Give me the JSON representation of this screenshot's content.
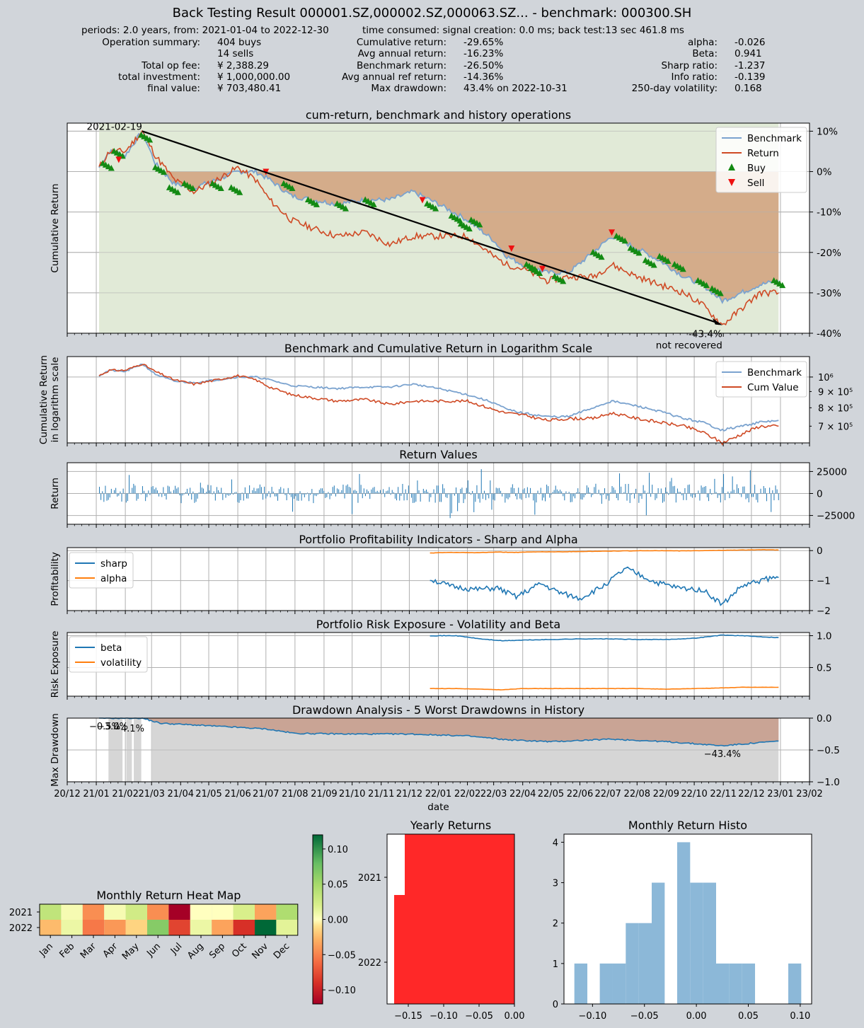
{
  "header": {
    "title": "Back Testing Result 000001.SZ,000002.SZ,000063.SZ... - benchmark: 000300.SH",
    "periods": "periods: 2.0 years, from: 2021-01-04 to 2022-12-30",
    "time_consumed": "time consumed:   signal creation: 0.0 ms;  back test:13 sec 461.8 ms",
    "left_labels": [
      "Operation summary:",
      "",
      "Total op fee:",
      "total investment:",
      "final value:"
    ],
    "left_values": [
      "404     buys",
      "14     sells",
      "¥     2,388.29",
      "¥ 1,000,000.00",
      "¥   703,480.41"
    ],
    "mid_labels": [
      "Cumulative return:",
      "Avg annual return:",
      "Benchmark return:",
      "Avg annual ref return:",
      "Max drawdown:"
    ],
    "mid_values": [
      "-29.65%",
      "-16.23%",
      "-26.50%",
      "-14.36%",
      "43.4% on 2022-10-31"
    ],
    "right_labels": [
      "alpha:",
      "Beta:",
      "Sharp ratio:",
      "Info ratio:",
      "250-day volatility:"
    ],
    "right_values": [
      "-0.026",
      "0.941",
      "-1.237",
      "-0.139",
      "0.168"
    ]
  },
  "colors": {
    "background": "#d1d5da",
    "benchmark": "#7ba3cf",
    "return": "#cf4a25",
    "buy": "#138a13",
    "sell": "#ee1111",
    "gain_fill": "#e1ead7",
    "loss_fill": "#d4ac8a",
    "bar": "#1f77b4",
    "sharp": "#1f77b4",
    "alpha": "#ff7f0e",
    "yearly": "#ff2828",
    "histo": "#8cb8d8"
  },
  "date_ticks": [
    "20/12",
    "21/01",
    "21/02",
    "21/03",
    "21/04",
    "21/05",
    "21/06",
    "21/07",
    "21/08",
    "21/09",
    "21/10",
    "21/11",
    "21/12",
    "22/01",
    "22/02",
    "22/03",
    "22/04",
    "22/05",
    "22/06",
    "22/07",
    "22/08",
    "22/09",
    "22/10",
    "22/11",
    "22/12",
    "23/01",
    "23/02"
  ],
  "x_label": "date",
  "chart_data": [
    {
      "id": "cum",
      "type": "line",
      "title": "cum-return, benchmark and history operations",
      "ylabel": "Cumulative Return",
      "ylim": [
        -0.4,
        0.12
      ],
      "yticks": [
        0.1,
        0,
        -0.1,
        -0.2,
        -0.3,
        -0.4
      ],
      "ytick_labels": [
        "10%",
        "0%",
        "-10%",
        "-20%",
        "-30%",
        "-40%"
      ],
      "legend": [
        "Benchmark",
        "Return",
        "Buy",
        "Sell"
      ],
      "legend_position": "top-right",
      "grid": true,
      "x": [
        "2021-01-04",
        "2021-01-15",
        "2021-02-01",
        "2021-02-19",
        "2021-03-05",
        "2021-03-25",
        "2021-04-15",
        "2021-05-10",
        "2021-06-01",
        "2021-06-20",
        "2021-07-05",
        "2021-07-28",
        "2021-08-20",
        "2021-09-15",
        "2021-10-15",
        "2021-11-10",
        "2021-12-05",
        "2022-01-01",
        "2022-02-01",
        "2022-03-01",
        "2022-03-15",
        "2022-04-01",
        "2022-04-27",
        "2022-05-20",
        "2022-06-15",
        "2022-07-05",
        "2022-08-01",
        "2022-08-25",
        "2022-09-20",
        "2022-10-10",
        "2022-10-31",
        "2022-11-20",
        "2022-12-10",
        "2022-12-30"
      ],
      "series": [
        {
          "name": "Benchmark",
          "values": [
            0.01,
            0.05,
            0.04,
            0.1,
            0.02,
            -0.03,
            -0.04,
            -0.02,
            0.0,
            0.0,
            -0.02,
            -0.06,
            -0.07,
            -0.08,
            -0.07,
            -0.07,
            -0.05,
            -0.08,
            -0.12,
            -0.17,
            -0.21,
            -0.23,
            -0.25,
            -0.25,
            -0.2,
            -0.16,
            -0.19,
            -0.22,
            -0.26,
            -0.28,
            -0.32,
            -0.3,
            -0.28,
            -0.27
          ]
        },
        {
          "name": "Return",
          "values": [
            0.01,
            0.05,
            0.05,
            0.1,
            0.04,
            -0.02,
            -0.05,
            -0.02,
            0.01,
            -0.02,
            -0.07,
            -0.12,
            -0.14,
            -0.16,
            -0.15,
            -0.18,
            -0.16,
            -0.16,
            -0.16,
            -0.21,
            -0.23,
            -0.24,
            -0.27,
            -0.26,
            -0.26,
            -0.23,
            -0.26,
            -0.28,
            -0.3,
            -0.33,
            -0.38,
            -0.34,
            -0.3,
            -0.3
          ]
        }
      ],
      "buy_markers": [
        [
          "2021-01-08",
          0.02
        ],
        [
          "2021-01-20",
          0.05
        ],
        [
          "2021-02-18",
          0.09
        ],
        [
          "2021-03-05",
          0.01
        ],
        [
          "2021-03-20",
          -0.04
        ],
        [
          "2021-04-05",
          -0.03
        ],
        [
          "2021-05-05",
          -0.03
        ],
        [
          "2021-05-25",
          -0.04
        ],
        [
          "2021-07-20",
          -0.03
        ],
        [
          "2021-08-15",
          -0.07
        ],
        [
          "2021-09-15",
          -0.08
        ],
        [
          "2021-10-15",
          -0.07
        ],
        [
          "2021-12-20",
          -0.08
        ],
        [
          "2022-01-15",
          -0.11
        ],
        [
          "2022-01-25",
          -0.13
        ],
        [
          "2022-02-05",
          -0.12
        ],
        [
          "2022-04-05",
          -0.23
        ],
        [
          "2022-04-10",
          -0.24
        ],
        [
          "2022-05-05",
          -0.26
        ],
        [
          "2022-06-15",
          -0.2
        ],
        [
          "2022-07-10",
          -0.16
        ],
        [
          "2022-07-25",
          -0.19
        ],
        [
          "2022-08-10",
          -0.22
        ],
        [
          "2022-08-25",
          -0.21
        ],
        [
          "2022-09-10",
          -0.23
        ],
        [
          "2022-10-05",
          -0.27
        ],
        [
          "2022-10-20",
          -0.29
        ],
        [
          "2022-12-25",
          -0.27
        ]
      ],
      "sell_markers": [
        [
          "2021-01-25",
          0.03
        ],
        [
          "2021-07-01",
          0.0
        ],
        [
          "2021-12-15",
          -0.07
        ],
        [
          "2022-03-20",
          -0.19
        ],
        [
          "2022-04-22",
          -0.24
        ],
        [
          "2022-07-05",
          -0.15
        ]
      ],
      "max_drawdown": {
        "peak_date": "2021-02-19",
        "trough_date": "2022-10-31",
        "peak_label": "2021-02-19",
        "trough_label": "-43.4%",
        "status": "not recovered"
      }
    },
    {
      "id": "log",
      "type": "line",
      "title": "Benchmark and Cumulative Return in Logarithm Scale",
      "ylabel": "Cumulative Return\nin logarithm scale",
      "yscale": "log",
      "ylim": [
        620000,
        1160000
      ],
      "ytick_labels": [
        "10^6",
        "9 × 10^5",
        "8 × 10^5",
        "7 × 10^5"
      ],
      "legend": [
        "Benchmark",
        "Cum Value"
      ],
      "legend_position": "top-right",
      "grid": true
    },
    {
      "id": "ret",
      "type": "bar",
      "title": "Return Values",
      "ylabel": "Return",
      "ylim": [
        -35000,
        35000
      ],
      "yticks": [
        25000,
        0,
        -25000
      ],
      "ytick_labels": [
        "25000",
        "0",
        "−25000"
      ],
      "grid": true
    },
    {
      "id": "prof",
      "type": "line",
      "title": "Portfolio Profitability Indicators - Sharp and Alpha",
      "ylabel": "Profitability",
      "ylim": [
        -2.0,
        0.1
      ],
      "yticks": [
        0,
        -1,
        -2
      ],
      "ytick_labels": [
        "0",
        "−1",
        "−2"
      ],
      "legend": [
        "sharp",
        "alpha"
      ],
      "legend_position": "top-left",
      "grid": true,
      "x": [
        "2021-12-23",
        "2022-01-15",
        "2022-02-10",
        "2022-03-05",
        "2022-03-25",
        "2022-04-20",
        "2022-05-10",
        "2022-06-01",
        "2022-06-25",
        "2022-07-20",
        "2022-08-20",
        "2022-09-15",
        "2022-10-10",
        "2022-10-31",
        "2022-11-20",
        "2022-12-15",
        "2022-12-30"
      ],
      "series": [
        {
          "name": "sharp",
          "values": [
            -0.95,
            -1.2,
            -1.3,
            -1.25,
            -1.55,
            -1.1,
            -1.4,
            -1.6,
            -1.2,
            -0.6,
            -1.05,
            -1.25,
            -1.3,
            -1.8,
            -1.2,
            -0.95,
            -0.9
          ]
        },
        {
          "name": "alpha",
          "values": [
            -0.08,
            -0.06,
            -0.07,
            -0.05,
            -0.06,
            -0.04,
            -0.04,
            -0.03,
            -0.02,
            -0.01,
            0.0,
            -0.01,
            0.0,
            0.01,
            0.02,
            0.03,
            0.02
          ]
        }
      ]
    },
    {
      "id": "risk",
      "type": "line",
      "title": "Portfolio Risk Exposure - Volatility and Beta",
      "ylabel": "Risk Exposure",
      "ylim": [
        0.05,
        1.05
      ],
      "yticks": [
        1.0,
        0.5
      ],
      "ytick_labels": [
        "1.0",
        "0.5"
      ],
      "legend": [
        "beta",
        "volatility"
      ],
      "legend_position": "top-left",
      "grid": true,
      "x": [
        "2021-12-23",
        "2022-01-20",
        "2022-02-15",
        "2022-03-10",
        "2022-04-01",
        "2022-05-01",
        "2022-06-01",
        "2022-07-01",
        "2022-08-01",
        "2022-09-01",
        "2022-10-01",
        "2022-10-31",
        "2022-11-20",
        "2022-12-30"
      ],
      "series": [
        {
          "name": "beta",
          "values": [
            1.0,
            1.0,
            0.95,
            0.92,
            0.93,
            0.94,
            0.95,
            0.95,
            0.94,
            0.94,
            0.96,
            1.01,
            1.0,
            0.97
          ]
        },
        {
          "name": "volatility",
          "values": [
            0.17,
            0.17,
            0.16,
            0.15,
            0.17,
            0.17,
            0.17,
            0.17,
            0.17,
            0.16,
            0.17,
            0.18,
            0.19,
            0.19
          ]
        }
      ]
    },
    {
      "id": "dd",
      "type": "area",
      "title": "Drawdown Analysis - 5 Worst Drawdowns in History",
      "ylabel": "Max Drawdown",
      "ylim": [
        -1.0,
        0.0
      ],
      "yticks": [
        0,
        -0.5,
        -1.0
      ],
      "ytick_labels": [
        "0.0",
        "−0.5",
        "−1.0"
      ],
      "grid": true,
      "x": [
        "2021-01-04",
        "2021-02-19",
        "2021-03-10",
        "2021-05-01",
        "2021-07-01",
        "2021-08-01",
        "2021-10-01",
        "2021-12-01",
        "2022-02-01",
        "2022-03-15",
        "2022-05-01",
        "2022-07-05",
        "2022-09-01",
        "2022-10-31",
        "2022-12-30"
      ],
      "values": [
        0.0,
        0.0,
        -0.08,
        -0.12,
        -0.17,
        -0.24,
        -0.25,
        -0.25,
        -0.28,
        -0.34,
        -0.37,
        -0.33,
        -0.37,
        -0.434,
        -0.36
      ],
      "annotations": [
        "−0.5%",
        "−3.0%",
        "−4.1%",
        "−43.4%"
      ]
    },
    {
      "id": "heat",
      "type": "heatmap",
      "title": "Monthly Return Heat Map",
      "rows": [
        "2021",
        "2022"
      ],
      "columns": [
        "Jan",
        "Feb",
        "Mar",
        "Apr",
        "May",
        "Jun",
        "Jul",
        "Aug",
        "Sep",
        "Oct",
        "Nov",
        "Dec"
      ],
      "values": [
        [
          0.035,
          0.005,
          -0.045,
          0.005,
          0.025,
          -0.045,
          -0.12,
          0.0,
          0.0,
          0.02,
          -0.035,
          0.045
        ],
        [
          -0.025,
          0.01,
          -0.055,
          -0.04,
          -0.015,
          0.065,
          -0.08,
          0.01,
          -0.035,
          -0.09,
          0.12,
          0.015
        ]
      ],
      "colorbar_range": [
        -0.12,
        0.12
      ],
      "colorbar_ticks": [
        "0.10",
        "0.05",
        "0.00",
        "−0.05",
        "−0.10"
      ]
    },
    {
      "id": "year",
      "type": "bar",
      "orientation": "horizontal",
      "title": "Yearly Returns",
      "categories": [
        "2021",
        "2022"
      ],
      "values": [
        -0.155,
        -0.17
      ],
      "xlim": [
        -0.18,
        0.0
      ],
      "xtick_labels": [
        "−0.15",
        "−0.10",
        "−0.05",
        "0.00"
      ]
    },
    {
      "id": "hist",
      "type": "bar",
      "title": "Monthly Return Histo",
      "bins": [
        [
          -0.1175,
          -0.105,
          1
        ],
        [
          -0.093,
          -0.0805,
          1
        ],
        [
          -0.0805,
          -0.068,
          1
        ],
        [
          -0.068,
          -0.0555,
          2
        ],
        [
          -0.0555,
          -0.043,
          2
        ],
        [
          -0.043,
          -0.0305,
          3
        ],
        [
          -0.0185,
          -0.006,
          4
        ],
        [
          -0.006,
          0.0065,
          3
        ],
        [
          0.0065,
          0.019,
          3
        ],
        [
          0.019,
          0.0315,
          1
        ],
        [
          0.0315,
          0.044,
          1
        ],
        [
          0.044,
          0.0565,
          1
        ],
        [
          0.0885,
          0.101,
          1
        ]
      ],
      "ylim": [
        0,
        4.2
      ],
      "ytick_labels": [
        "0",
        "1",
        "2",
        "3",
        "4"
      ],
      "xtick_labels": [
        "−0.10",
        "−0.05",
        "0.00",
        "0.05",
        "0.10"
      ]
    }
  ]
}
